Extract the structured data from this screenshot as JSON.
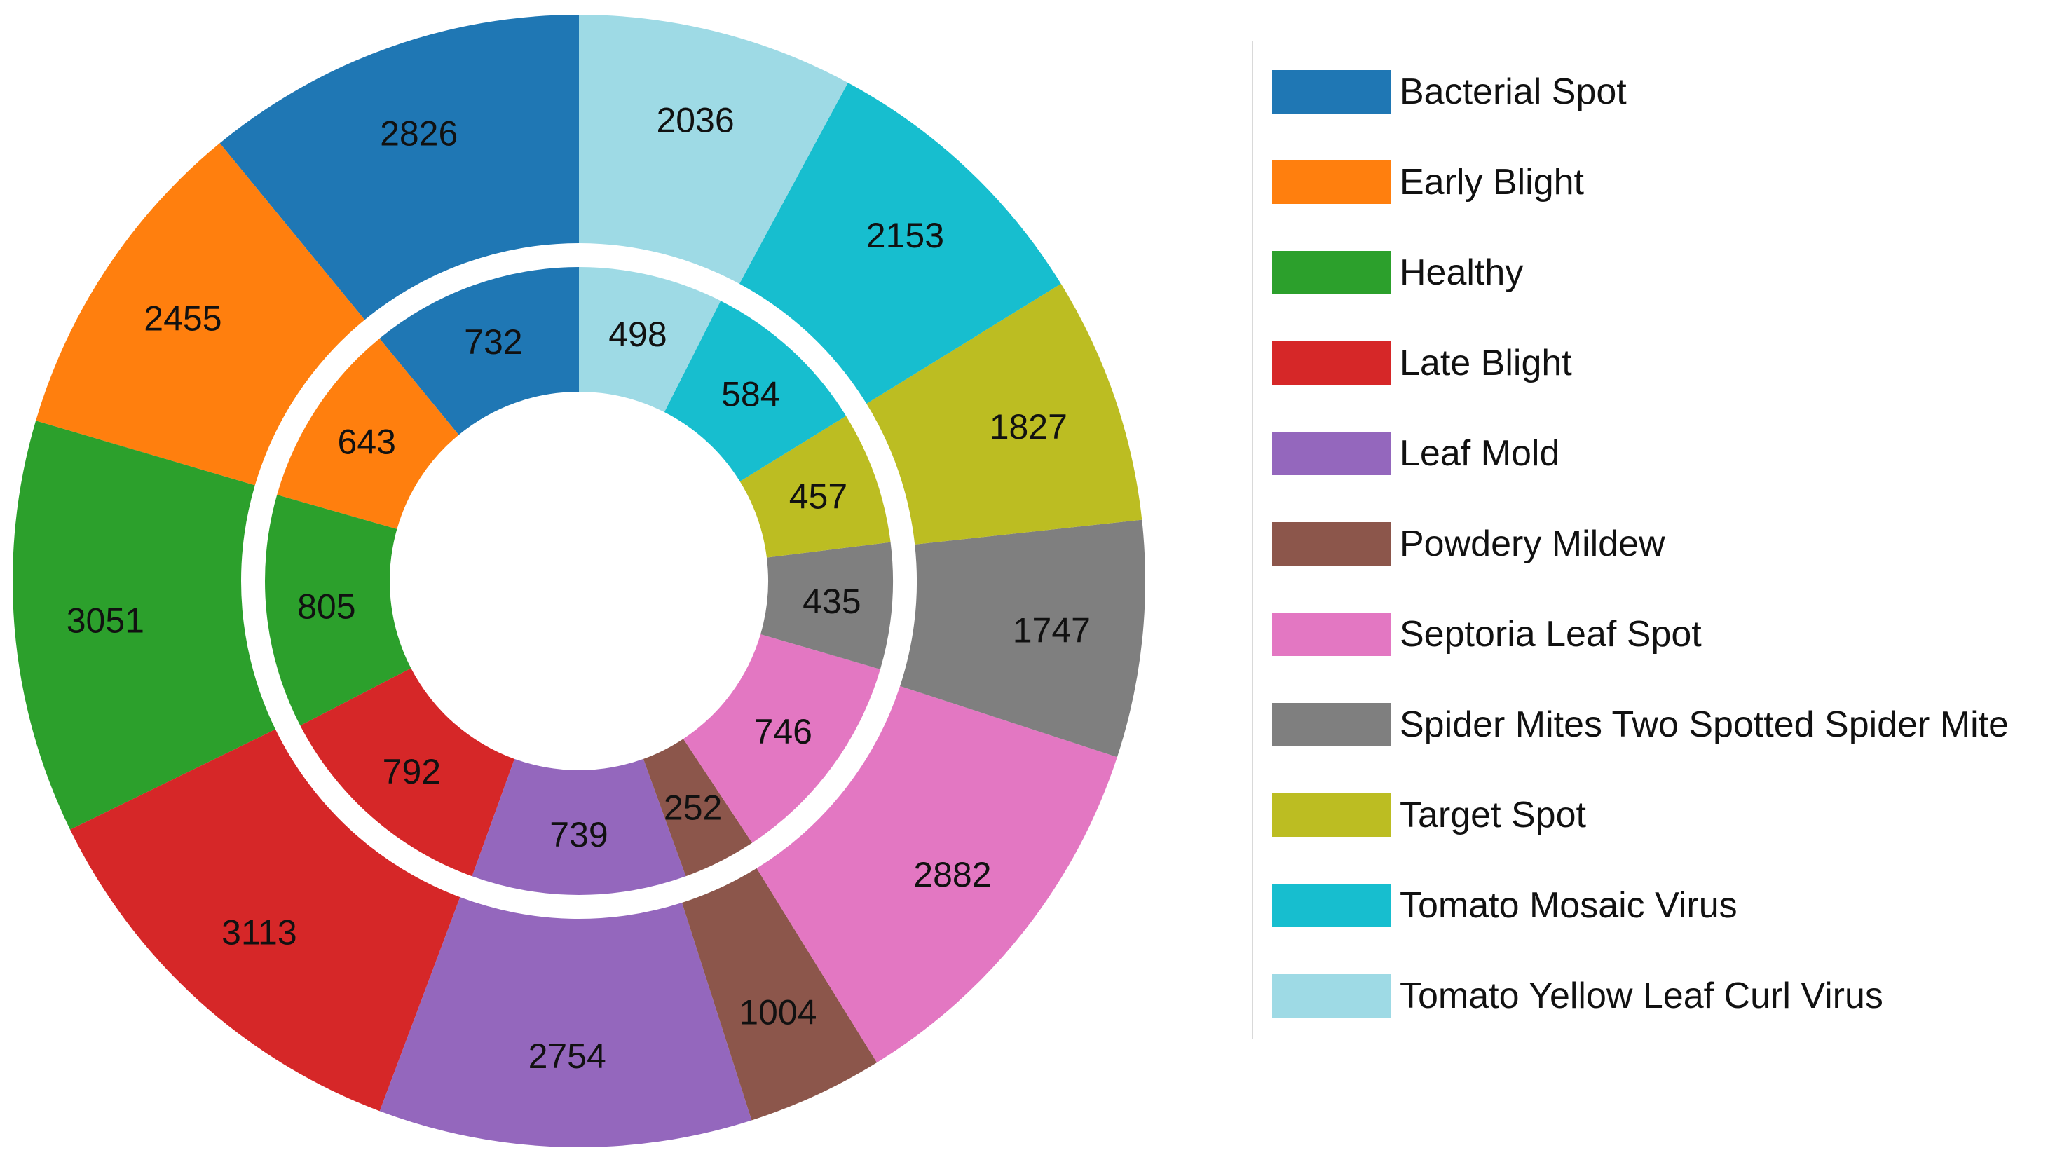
{
  "chart_data": {
    "type": "pie",
    "subtype": "nested-donut",
    "categories": [
      "Bacterial Spot",
      "Early Blight",
      "Healthy",
      "Late Blight",
      "Leaf Mold",
      "Powdery Mildew",
      "Septoria Leaf Spot",
      "Spider Mites Two Spotted Spider Mite",
      "Target Spot",
      "Tomato Mosaic Virus",
      "Tomato Yellow Leaf Curl Virus"
    ],
    "colors": [
      "#1f77b4",
      "#ff7f0e",
      "#2ca02c",
      "#d62728",
      "#9467bd",
      "#8c564b",
      "#e377c2",
      "#7f7f7f",
      "#bcbd22",
      "#17becf",
      "#9edae5"
    ],
    "series": [
      {
        "ring": "outer",
        "values": [
          2826,
          2455,
          3051,
          3113,
          2754,
          1004,
          2882,
          1747,
          1827,
          2153,
          2036
        ]
      },
      {
        "ring": "inner",
        "values": [
          732,
          643,
          805,
          792,
          739,
          252,
          746,
          435,
          457,
          584,
          498
        ]
      }
    ],
    "direction": "counterclockwise",
    "start": "top",
    "legend_position": "right"
  }
}
